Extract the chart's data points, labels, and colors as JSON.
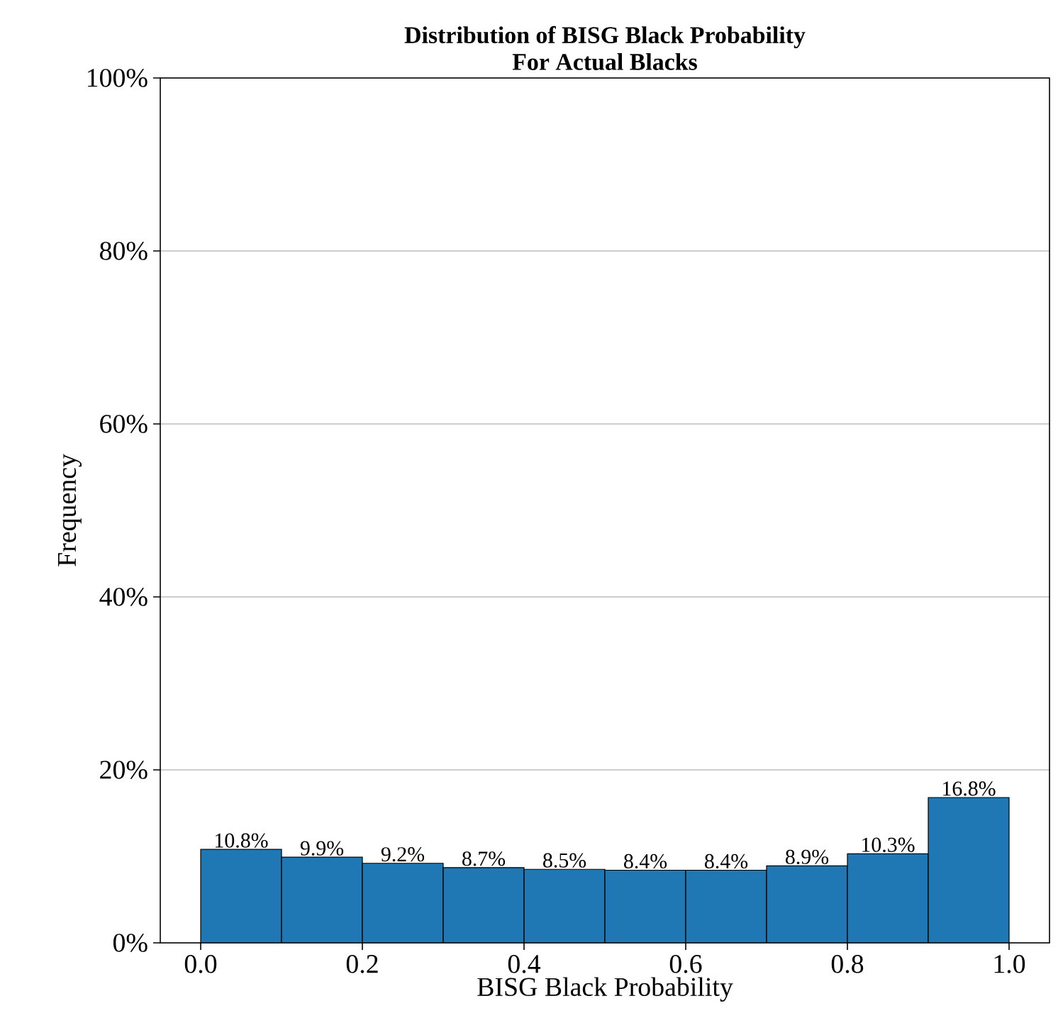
{
  "chart_data": {
    "type": "histogram",
    "title": "Distribution of BISG Black Probability\nFor Actual Blacks",
    "xlabel": "BISG Black Probability",
    "ylabel": "Frequency",
    "bins": [
      0.0,
      0.1,
      0.2,
      0.3,
      0.4,
      0.5,
      0.6,
      0.7,
      0.8,
      0.9,
      1.0
    ],
    "values": [
      10.8,
      9.9,
      9.2,
      8.7,
      8.5,
      8.4,
      8.4,
      8.9,
      10.3,
      16.8
    ],
    "value_labels": [
      "10.8%",
      "9.9%",
      "9.2%",
      "8.7%",
      "8.5%",
      "8.4%",
      "8.4%",
      "8.9%",
      "10.3%",
      "16.8%"
    ],
    "color": "#1f77b4",
    "xlim": [
      -0.05,
      1.05
    ],
    "ylim": [
      0,
      100
    ],
    "xticks": [
      {
        "value": 0,
        "label": "0.0"
      },
      {
        "value": 0.2,
        "label": "0.2"
      },
      {
        "value": 0.4,
        "label": "0.4"
      },
      {
        "value": 0.6,
        "label": "0.6"
      },
      {
        "value": 0.8,
        "label": "0.8"
      },
      {
        "value": 1.0,
        "label": "1.0"
      }
    ],
    "yticks": [
      {
        "value": 0,
        "label": "0%"
      },
      {
        "value": 20,
        "label": "20%"
      },
      {
        "value": 40,
        "label": "40%"
      },
      {
        "value": 60,
        "label": "60%"
      },
      {
        "value": 80,
        "label": "80%"
      },
      {
        "value": 100,
        "label": "100%"
      }
    ],
    "grid": "y"
  }
}
